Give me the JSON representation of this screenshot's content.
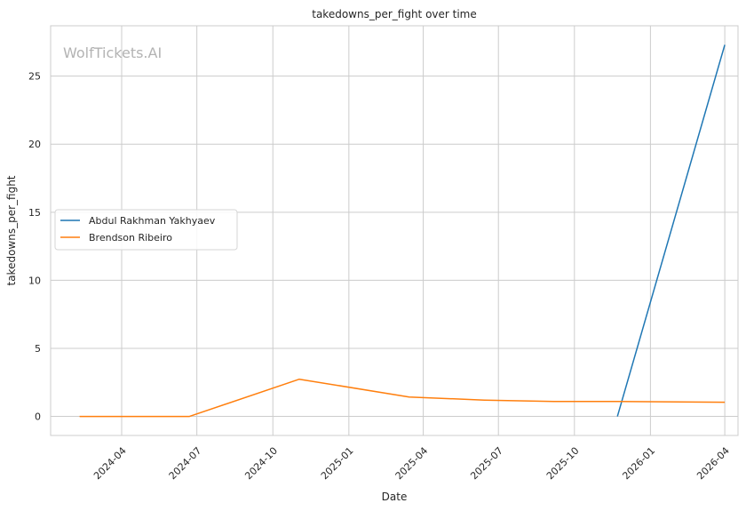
{
  "chart_data": {
    "type": "line",
    "title": "takedowns_per_fight over time",
    "xlabel": "Date",
    "ylabel": "takedowns_per_fight",
    "watermark": "WolfTickets.AI",
    "x_axis_kind": "date",
    "xlim": [
      "2024-01-06",
      "2026-04-17"
    ],
    "ylim": [
      -1.4,
      28.7
    ],
    "x_ticks": [
      "2024-04",
      "2024-07",
      "2024-10",
      "2025-01",
      "2025-04",
      "2025-07",
      "2025-10",
      "2026-01",
      "2026-04"
    ],
    "y_ticks": [
      0,
      5,
      10,
      15,
      20,
      25
    ],
    "grid": true,
    "legend_position": "center-left",
    "series": [
      {
        "name": "Abdul Rakhman Yakhyaev",
        "color": "#1f77b4",
        "points": [
          {
            "x": "2025-11-22",
            "y": 0.0
          },
          {
            "x": "2026-04-01",
            "y": 27.3
          }
        ]
      },
      {
        "name": "Brendson Ribeiro",
        "color": "#ff7f0e",
        "points": [
          {
            "x": "2024-02-10",
            "y": 0.0
          },
          {
            "x": "2024-06-22",
            "y": 0.0
          },
          {
            "x": "2024-11-02",
            "y": 2.73
          },
          {
            "x": "2025-03-15",
            "y": 1.43
          },
          {
            "x": "2025-06-14",
            "y": 1.2
          },
          {
            "x": "2025-09-06",
            "y": 1.1
          },
          {
            "x": "2025-11-22",
            "y": 1.1
          },
          {
            "x": "2026-04-01",
            "y": 1.04
          }
        ]
      }
    ]
  }
}
